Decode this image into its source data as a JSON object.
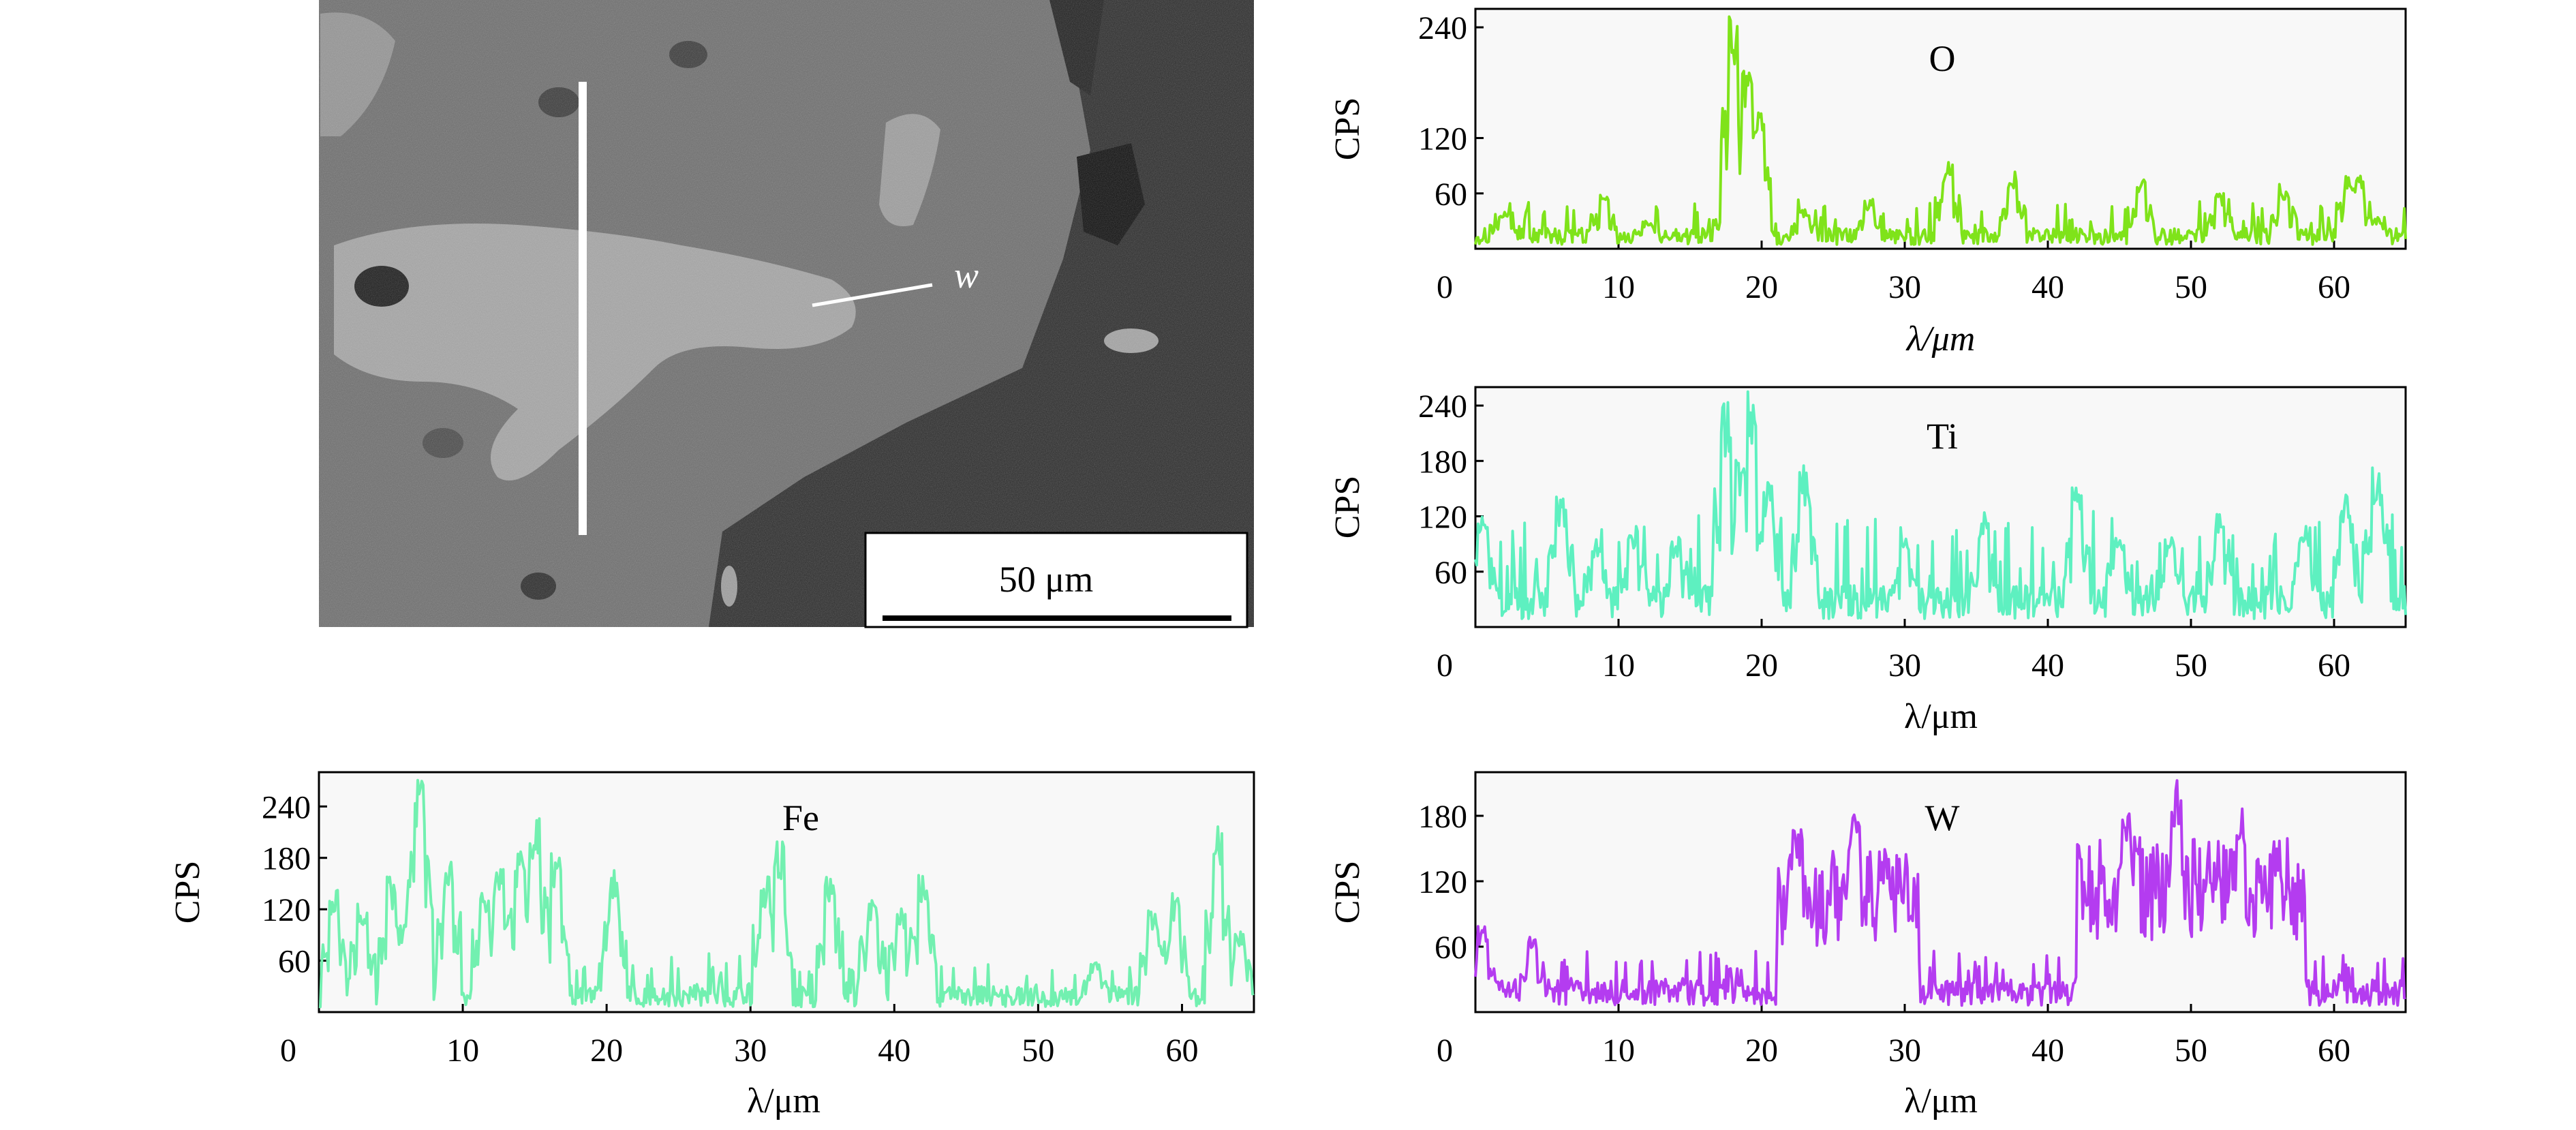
{
  "micrograph": {
    "scale_bar_label": "50 μm",
    "line_label": "w"
  },
  "colors": {
    "O": "#7fe31a",
    "Ti": "#5ef0c0",
    "Fe": "#72f0b0",
    "W": "#b43cf0",
    "W_edge": "#d020d0"
  },
  "chart_data": [
    {
      "type": "line",
      "element": "O",
      "title": "O",
      "xlabel": "λ/μm",
      "ylabel": "CPS",
      "xlim": [
        0,
        65
      ],
      "ylim": [
        0,
        260
      ],
      "xticks": [
        0,
        10,
        20,
        30,
        40,
        50,
        60
      ],
      "yticks": [
        60,
        120,
        240
      ],
      "baseline": 15,
      "noise": 20,
      "peaks": [
        [
          2,
          40
        ],
        [
          9,
          60
        ],
        [
          12,
          30
        ],
        [
          17.5,
          55
        ],
        [
          18,
          255
        ],
        [
          19,
          200
        ],
        [
          19.8,
          150
        ],
        [
          23,
          45
        ],
        [
          27.5,
          55
        ],
        [
          33,
          95
        ],
        [
          37.5,
          85
        ],
        [
          46.5,
          75
        ],
        [
          52,
          60
        ],
        [
          56.5,
          70
        ],
        [
          61,
          80
        ],
        [
          61.7,
          80
        ],
        [
          63,
          35
        ]
      ],
      "series": [
        {
          "name": "O"
        }
      ]
    },
    {
      "type": "line",
      "element": "Ti",
      "title": "Ti",
      "xlabel": "λ/μm",
      "ylabel": "CPS",
      "xlim": [
        0,
        65
      ],
      "ylim": [
        0,
        260
      ],
      "xticks": [
        0,
        10,
        20,
        30,
        40,
        50,
        60
      ],
      "yticks": [
        60,
        120,
        180,
        240
      ],
      "baseline": 30,
      "noise": 45,
      "peaks": [
        [
          0.5,
          130
        ],
        [
          6,
          145
        ],
        [
          8.5,
          100
        ],
        [
          11,
          110
        ],
        [
          14,
          100
        ],
        [
          17.5,
          245
        ],
        [
          18.5,
          190
        ],
        [
          19.3,
          260
        ],
        [
          20.5,
          160
        ],
        [
          23,
          175
        ],
        [
          30,
          100
        ],
        [
          35.5,
          125
        ],
        [
          42,
          155
        ],
        [
          45,
          110
        ],
        [
          48.5,
          100
        ],
        [
          52,
          130
        ],
        [
          58,
          110
        ],
        [
          60.8,
          145
        ],
        [
          63,
          175
        ]
      ],
      "series": [
        {
          "name": "Ti"
        }
      ]
    },
    {
      "type": "line",
      "element": "Fe",
      "title": "Fe",
      "xlabel": "λ/μm",
      "ylabel": "CPS",
      "xlim": [
        0,
        65
      ],
      "ylim": [
        0,
        280
      ],
      "xticks": [
        0,
        10,
        20,
        30,
        40,
        50,
        60
      ],
      "yticks": [
        60,
        120,
        180,
        240
      ],
      "baseline": 20,
      "noise": 20,
      "peaks": [
        [
          1,
          150
        ],
        [
          3,
          130
        ],
        [
          5,
          160
        ],
        [
          6.5,
          190
        ],
        [
          7,
          280
        ],
        [
          9,
          180
        ],
        [
          11.5,
          150
        ],
        [
          12.5,
          170
        ],
        [
          14,
          190
        ],
        [
          15,
          230
        ],
        [
          16.5,
          190
        ],
        [
          20.5,
          170
        ],
        [
          31,
          160
        ],
        [
          32,
          200
        ],
        [
          35.5,
          170
        ],
        [
          38.5,
          140
        ],
        [
          40.5,
          130
        ],
        [
          42,
          160
        ],
        [
          54,
          60
        ],
        [
          58,
          120
        ],
        [
          59.5,
          140
        ],
        [
          62.5,
          230
        ],
        [
          64,
          100
        ]
      ],
      "series": [
        {
          "name": "Fe"
        }
      ]
    },
    {
      "type": "line",
      "element": "W",
      "title": "W",
      "xlabel": "λ/μm",
      "ylabel": "CPS",
      "xlim": [
        0,
        65
      ],
      "ylim": [
        0,
        220
      ],
      "xticks": [
        0,
        10,
        20,
        30,
        40,
        50,
        60
      ],
      "yticks": [
        60,
        120,
        180
      ],
      "baseline": 20,
      "noise": 18,
      "plateaus": [
        [
          21,
          31,
          110
        ],
        [
          42,
          58,
          120
        ]
      ],
      "peaks": [
        [
          0.5,
          80
        ],
        [
          4,
          70
        ],
        [
          22.5,
          170
        ],
        [
          26.5,
          200
        ],
        [
          28.5,
          150
        ],
        [
          45.5,
          195
        ],
        [
          49,
          215
        ],
        [
          53.5,
          200
        ],
        [
          56,
          165
        ]
      ],
      "series": [
        {
          "name": "W"
        }
      ]
    }
  ]
}
